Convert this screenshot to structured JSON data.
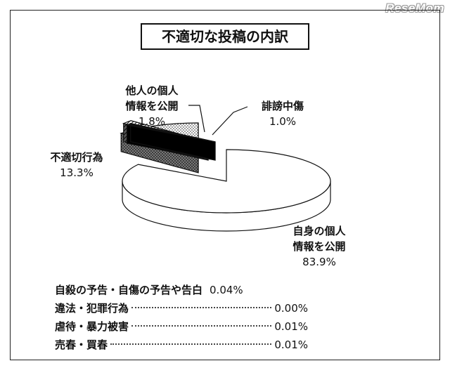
{
  "watermark": "ReseMom",
  "chart_data": {
    "type": "pie",
    "title": "不適切な投稿の内訳",
    "slices": [
      {
        "label": "自身の個人\n情報を公開",
        "line1": "自身の個人",
        "line2": "情報を公開",
        "value": 83.9,
        "display": "83.9%",
        "fill": "white"
      },
      {
        "label": "誹謗中傷",
        "line1": "誹謗中傷",
        "value": 1.0,
        "display": "1.0%",
        "fill": "black"
      },
      {
        "label": "他人の個人\n情報を公開",
        "line1": "他人の個人",
        "line2": "情報を公開",
        "value": 1.8,
        "display": "1.8%",
        "fill": "hatch"
      },
      {
        "label": "不適切行為",
        "line1": "不適切行為",
        "value": 13.3,
        "display": "13.3%",
        "fill": "dots"
      }
    ],
    "minor_items": [
      {
        "label": "自殺の予告・自傷の予告や告白",
        "value": 0.04,
        "display": "0.04%"
      },
      {
        "label": "違法・犯罪行為",
        "value": 0.0,
        "display": "0.00%"
      },
      {
        "label": "虐待・暴力被害",
        "value": 0.01,
        "display": "0.01%"
      },
      {
        "label": "売春・買春",
        "value": 0.01,
        "display": "0.01%"
      }
    ]
  }
}
